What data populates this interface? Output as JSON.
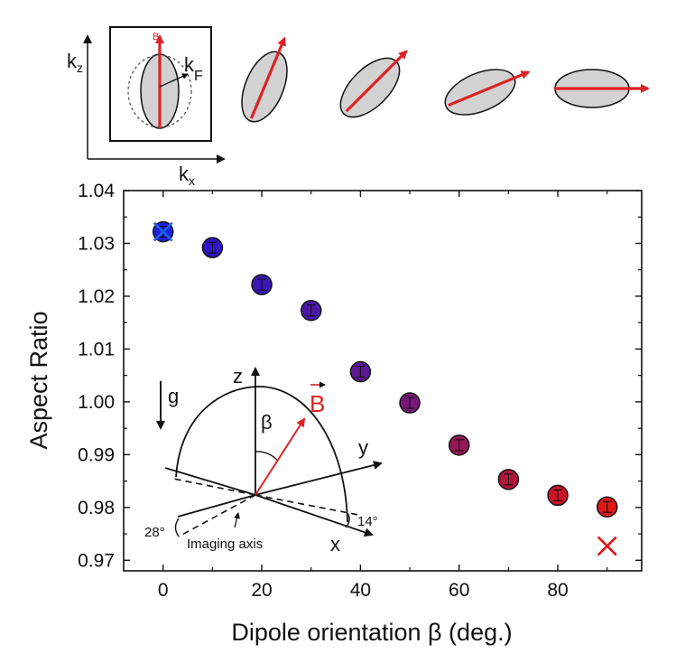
{
  "chart_data": {
    "type": "scatter",
    "xlabel": "Dipole orientation β (deg.)",
    "ylabel": "Aspect Ratio",
    "xlim": [
      -8,
      97
    ],
    "ylim": [
      0.968,
      1.04
    ],
    "x_ticks": [
      0,
      20,
      40,
      60,
      80
    ],
    "x_tick_labels": [
      "0",
      "20",
      "40",
      "60",
      "80"
    ],
    "y_ticks": [
      0.97,
      0.98,
      0.99,
      1.0,
      1.01,
      1.02,
      1.03,
      1.04
    ],
    "y_tick_labels": [
      "0.97",
      "0.98",
      "0.99",
      "1.00",
      "1.01",
      "1.02",
      "1.03",
      "1.04"
    ],
    "grid": false,
    "points": [
      {
        "x": 0,
        "y": 1.0322,
        "color": "#1f1fe0"
      },
      {
        "x": 10,
        "y": 1.0292,
        "color": "#2c16c8"
      },
      {
        "x": 20,
        "y": 1.0222,
        "color": "#3a18b8"
      },
      {
        "x": 30,
        "y": 1.0173,
        "color": "#4a1aa6"
      },
      {
        "x": 40,
        "y": 1.0057,
        "color": "#5e1a94"
      },
      {
        "x": 50,
        "y": 0.9998,
        "color": "#781878"
      },
      {
        "x": 60,
        "y": 0.9918,
        "color": "#961858"
      },
      {
        "x": 70,
        "y": 0.9853,
        "color": "#b3163c"
      },
      {
        "x": 80,
        "y": 0.9823,
        "color": "#cc1428"
      },
      {
        "x": 90,
        "y": 0.9801,
        "color": "#e01818"
      }
    ],
    "cross_markers": [
      {
        "x": 0,
        "y": 1.0322,
        "color": "#2060f0"
      },
      {
        "x": 90,
        "y": 0.9727,
        "color": "#e01010"
      }
    ]
  },
  "top_row": {
    "axis_label_kz": "kz",
    "axis_label_kx": "kx",
    "field_label": "B",
    "fermi_label": "kF",
    "arrow_color": "#dd2222",
    "ellipse_fill": "#d2d2d2",
    "ellipse_angles_deg": [
      0,
      22.5,
      45,
      67.5,
      90
    ]
  },
  "geometry_inset": {
    "z_label": "z",
    "y_label": "y",
    "x_label": "x",
    "beta_label": "β",
    "b_label": "B",
    "g_label": "g",
    "angle_28_label": "28°",
    "angle_14_label": "14°",
    "imaging_axis_label": "Imaging axis",
    "b_color": "#dd2222"
  }
}
